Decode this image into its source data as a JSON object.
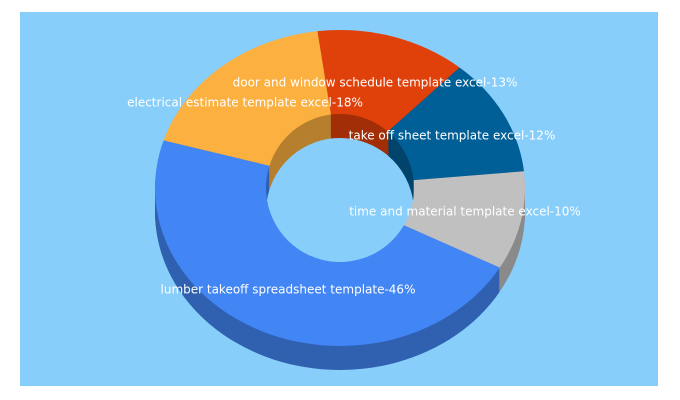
{
  "chart_data": {
    "type": "donut3d",
    "labels": [
      "door and window schedule template excel-13%",
      "take off sheet template excel-12%",
      "time and material template excel-10%",
      "lumber takeoff spreadsheet template-46%",
      "electrical estimate template excel-18%"
    ],
    "values": [
      13,
      12,
      10,
      46,
      18
    ],
    "colors": [
      "#e0400a",
      "#005f96",
      "#c0c0c0",
      "#4285f4",
      "#fbb040"
    ]
  }
}
